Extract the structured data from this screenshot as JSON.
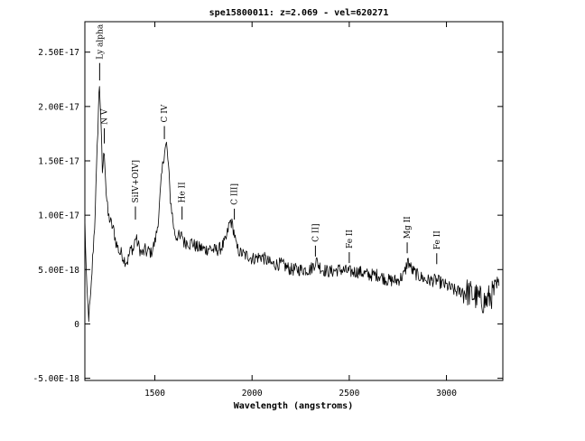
{
  "chart_data": {
    "type": "line",
    "title": "spe15800011: z=2.069 - vel=620271",
    "xlabel": "Wavelength (angstroms)",
    "ylabel": "",
    "xlim": [
      1140,
      3290
    ],
    "ylim": [
      -5.2e-18,
      2.78e-17
    ],
    "x_ticks": [
      1500,
      2000,
      2500,
      3000
    ],
    "x_tick_labels": [
      "1500",
      "2000",
      "2500",
      "3000"
    ],
    "y_ticks": [
      -5e-18,
      0,
      5e-18,
      1e-17,
      1.5e-17,
      2e-17,
      2.5e-17
    ],
    "y_tick_labels": [
      "-5.00E-18",
      "0",
      "5.00E-18",
      "1.00E-17",
      "1.50E-17",
      "2.00E-17",
      "2.50E-17"
    ],
    "grid": false,
    "legend": "none",
    "series": [
      {
        "color": "#000000",
        "x": [
          1140,
          1150,
          1160,
          1170,
          1180,
          1190,
          1200,
          1210,
          1215,
          1220,
          1230,
          1240,
          1250,
          1260,
          1270,
          1280,
          1290,
          1300,
          1310,
          1320,
          1330,
          1340,
          1350,
          1360,
          1370,
          1380,
          1390,
          1400,
          1410,
          1420,
          1430,
          1440,
          1450,
          1460,
          1470,
          1480,
          1490,
          1500,
          1510,
          1520,
          1530,
          1540,
          1550,
          1560,
          1570,
          1580,
          1590,
          1600,
          1610,
          1620,
          1630,
          1640,
          1650,
          1660,
          1670,
          1680,
          1690,
          1700,
          1720,
          1740,
          1760,
          1780,
          1800,
          1820,
          1840,
          1860,
          1870,
          1880,
          1890,
          1900,
          1910,
          1920,
          1930,
          1940,
          1950,
          1960,
          1980,
          2000,
          2050,
          2100,
          2150,
          2200,
          2250,
          2300,
          2320,
          2330,
          2340,
          2360,
          2400,
          2450,
          2500,
          2550,
          2600,
          2650,
          2700,
          2750,
          2780,
          2790,
          2800,
          2810,
          2820,
          2850,
          2900,
          2950,
          3000,
          3050,
          3100,
          3150,
          3200,
          3250,
          3270
        ],
        "y": [
          9.5e-18,
          3e-18,
          6e-19,
          2.5e-18,
          6e-18,
          9e-18,
          1.4e-17,
          2e-17,
          2.2e-17,
          2e-17,
          1.4e-17,
          1.6e-17,
          1.2e-17,
          1e-17,
          9.5e-18,
          9e-18,
          8.5e-18,
          7.5e-18,
          7e-18,
          6.5e-18,
          6.5e-18,
          6e-18,
          5.8e-18,
          5.8e-18,
          6.5e-18,
          7e-18,
          6.8e-18,
          8e-18,
          7.5e-18,
          7e-18,
          6.5e-18,
          6.5e-18,
          6.8e-18,
          6.5e-18,
          6.8e-18,
          6.5e-18,
          7e-18,
          7.5e-18,
          8.5e-18,
          1e-17,
          1.25e-17,
          1.45e-17,
          1.6e-17,
          1.65e-17,
          1.45e-17,
          1.15e-17,
          1e-17,
          8.5e-18,
          8e-18,
          8.2e-18,
          7.8e-18,
          8.3e-18,
          7.5e-18,
          7.5e-18,
          7.6e-18,
          7.3e-18,
          7.6e-18,
          7.3e-18,
          7e-18,
          7e-18,
          6.8e-18,
          7e-18,
          6.8e-18,
          6.8e-18,
          7e-18,
          7.5e-18,
          8e-18,
          9e-18,
          9.5e-18,
          9e-18,
          8.2e-18,
          7e-18,
          6.8e-18,
          6.5e-18,
          6.5e-18,
          6.3e-18,
          6.3e-18,
          6e-18,
          6.2e-18,
          5.5e-18,
          5.5e-18,
          5e-18,
          5e-18,
          5e-18,
          5.5e-18,
          5.8e-18,
          5.5e-18,
          5e-18,
          4.8e-18,
          5e-18,
          4.8e-18,
          4.8e-18,
          4.5e-18,
          4.5e-18,
          4e-18,
          4e-18,
          4.5e-18,
          5e-18,
          5.8e-18,
          5.5e-18,
          5e-18,
          4.5e-18,
          4e-18,
          4e-18,
          3.5e-18,
          3e-18,
          3e-18,
          2.5e-18,
          2e-18,
          3e-18,
          3.5e-18
        ],
        "noise_amplitude": 6e-19
      }
    ],
    "annotations": [
      {
        "text": "Ly alpha",
        "x": 1216,
        "y_tick_top": 2.4e-17,
        "y_tick_bottom": 2.24e-17
      },
      {
        "text": "N V",
        "x": 1240,
        "y_tick_top": 1.8e-17,
        "y_tick_bottom": 1.66e-17
      },
      {
        "text": "SiIV+OIV]",
        "x": 1400,
        "y_tick_top": 1.08e-17,
        "y_tick_bottom": 9.6e-18
      },
      {
        "text": "C IV",
        "x": 1549,
        "y_tick_top": 1.82e-17,
        "y_tick_bottom": 1.7e-17
      },
      {
        "text": "He II",
        "x": 1640,
        "y_tick_top": 1.08e-17,
        "y_tick_bottom": 9.6e-18
      },
      {
        "text": "C III]",
        "x": 1909,
        "y_tick_top": 1.06e-17,
        "y_tick_bottom": 9.6e-18
      },
      {
        "text": "C II]",
        "x": 2326,
        "y_tick_top": 7.2e-18,
        "y_tick_bottom": 6.2e-18
      },
      {
        "text": "Fe II",
        "x": 2500,
        "y_tick_top": 6.6e-18,
        "y_tick_bottom": 5.6e-18
      },
      {
        "text": "Mg II",
        "x": 2798,
        "y_tick_top": 7.5e-18,
        "y_tick_bottom": 6.5e-18
      },
      {
        "text": "Fe II",
        "x": 2950,
        "y_tick_top": 6.5e-18,
        "y_tick_bottom": 5.5e-18
      }
    ]
  }
}
